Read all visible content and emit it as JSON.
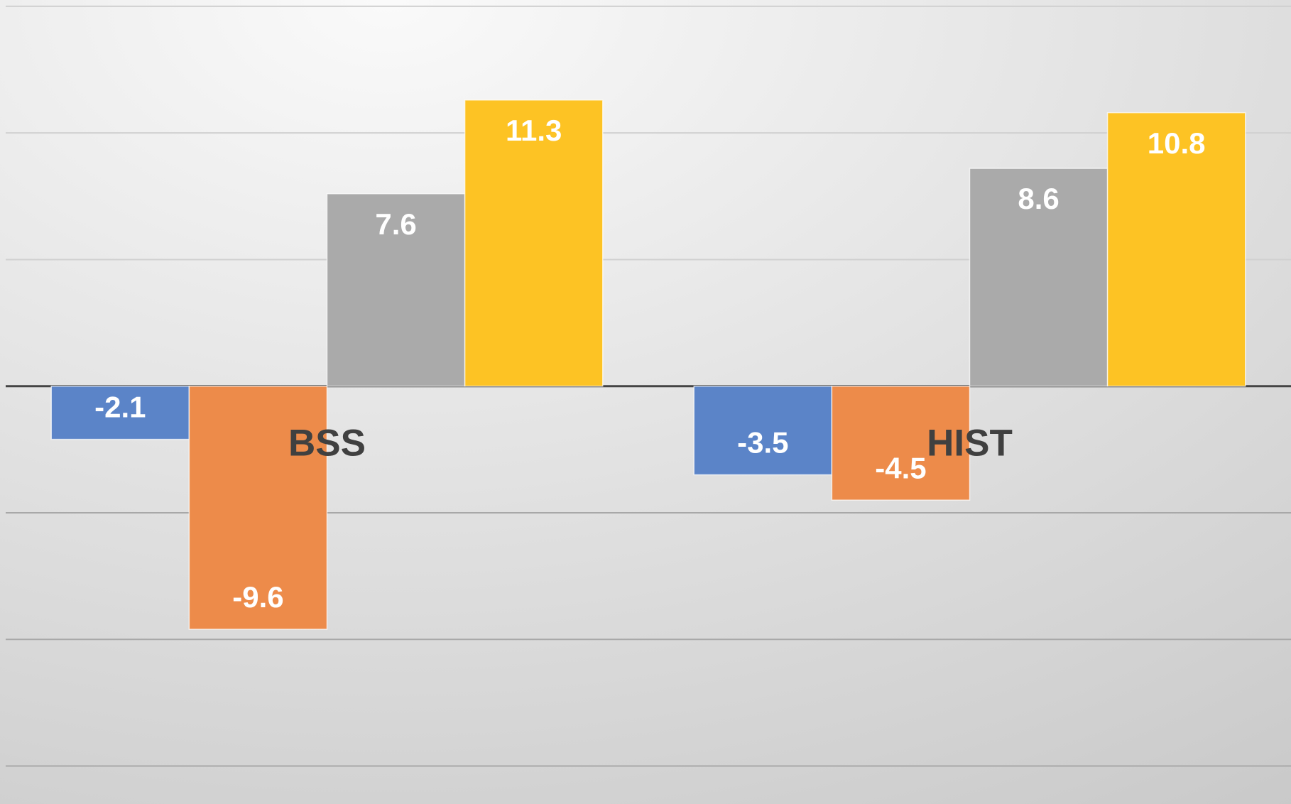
{
  "chart_data": {
    "type": "bar",
    "categories": [
      "BSS",
      "HIST"
    ],
    "series": [
      {
        "color": "#5b84c8",
        "values": [
          -2.1,
          -3.5
        ]
      },
      {
        "color": "#ed8b4a",
        "values": [
          -9.6,
          -4.5
        ]
      },
      {
        "color": "#aaaaaa",
        "values": [
          7.6,
          8.6
        ]
      },
      {
        "color": "#fdc324",
        "values": [
          11.3,
          10.8
        ]
      }
    ],
    "ylim": [
      -16.5,
      15.25
    ],
    "yticks": [
      -15,
      -10,
      -5,
      0,
      5,
      10,
      15
    ],
    "grid": true
  }
}
